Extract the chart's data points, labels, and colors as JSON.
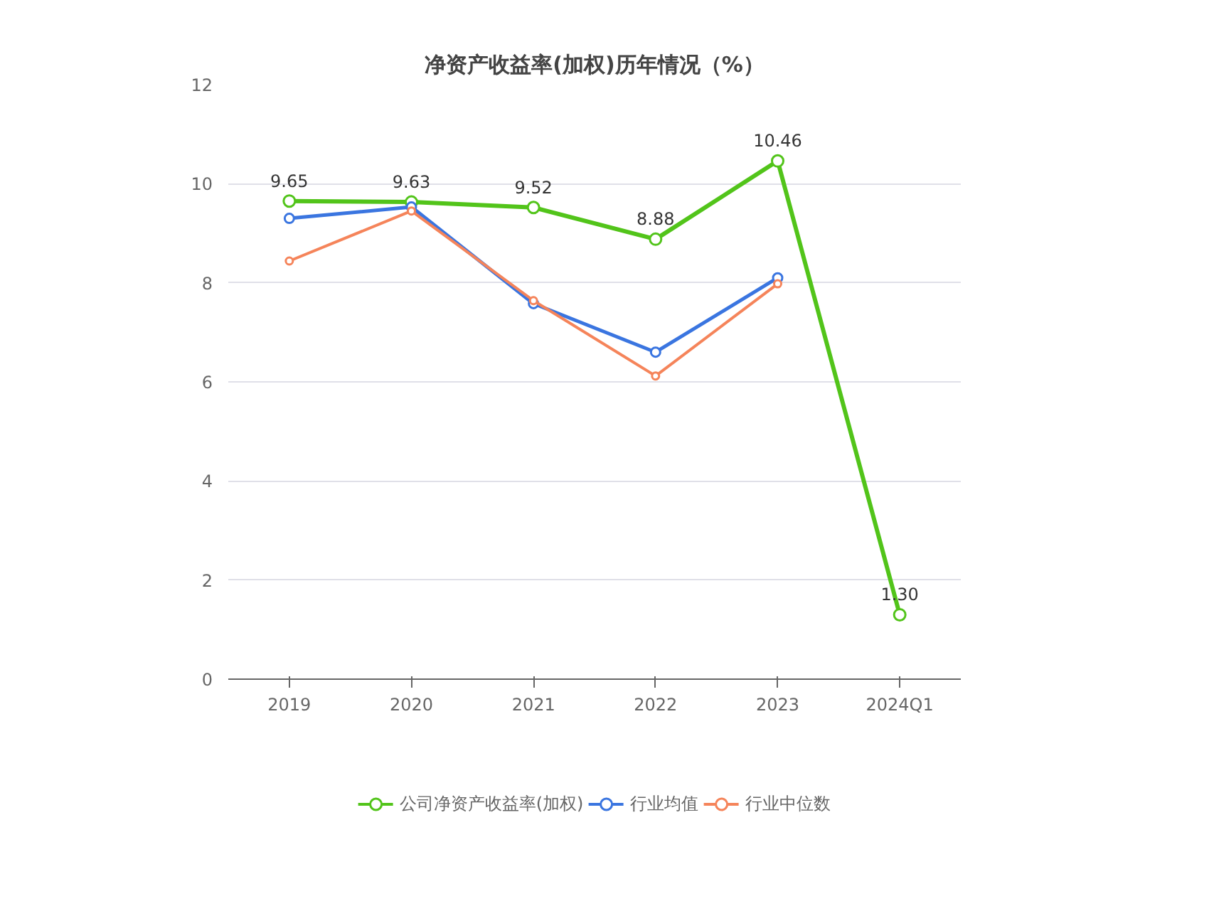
{
  "chart_data": {
    "type": "line",
    "title": "净资产收益率(加权)历年情况（%）",
    "categories": [
      "2019",
      "2020",
      "2021",
      "2022",
      "2023",
      "2024Q1"
    ],
    "series": [
      {
        "name": "公司净资产收益率(加权)",
        "color": "#52c41a",
        "values": [
          9.65,
          9.63,
          9.52,
          8.88,
          10.46,
          1.3
        ],
        "value_labels": [
          "9.65",
          "9.63",
          "9.52",
          "8.88",
          "10.46",
          "1.30"
        ]
      },
      {
        "name": "行业均值",
        "color": "#3a75e0",
        "values": [
          9.3,
          9.53,
          7.58,
          6.6,
          8.1,
          null
        ]
      },
      {
        "name": "行业中位数",
        "color": "#f5845a",
        "values": [
          8.44,
          9.45,
          7.64,
          6.12,
          7.98,
          null
        ]
      }
    ],
    "ylim": [
      0,
      12
    ],
    "yticks": [
      0,
      2,
      4,
      6,
      8,
      10,
      12
    ],
    "grid": "y",
    "legend": "bottom",
    "marker": "circle",
    "line_style": "solid"
  }
}
